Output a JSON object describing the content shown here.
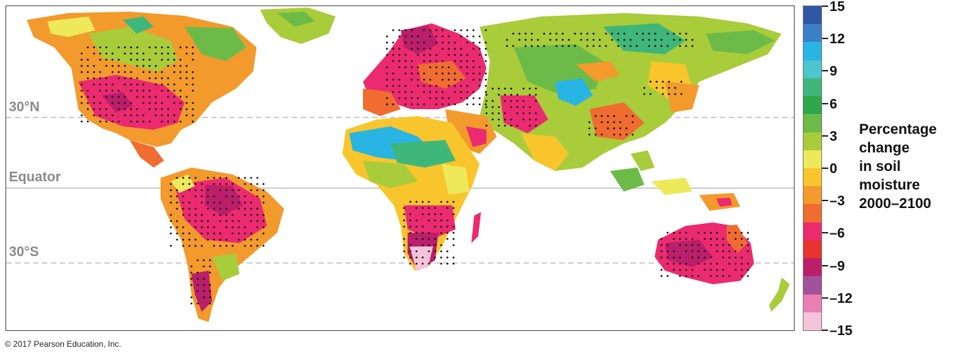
{
  "map": {
    "latitude_labels": [
      "30°N",
      "Equator",
      "30°S"
    ]
  },
  "legend": {
    "title_lines": [
      "Percentage",
      "change",
      "in soil",
      "moisture",
      "2000–2100"
    ],
    "ticks": [
      "15",
      "12",
      "9",
      "6",
      "3",
      "0",
      "–3",
      "–6",
      "–9",
      "–12",
      "–15"
    ],
    "colors": [
      "#2f57a6",
      "#3b7fc9",
      "#29b5e3",
      "#4cc5cc",
      "#3fb67a",
      "#2fa64a",
      "#6cbb48",
      "#a9cc3a",
      "#eee95b",
      "#f8c52c",
      "#f39a2c",
      "#f06c30",
      "#ec2a70",
      "#e8332f",
      "#bb1e6a",
      "#a3519b",
      "#e97fb2",
      "#f6c4da"
    ],
    "range": [
      -15,
      15
    ]
  },
  "copyright": "© 2017 Pearson Education, Inc."
}
